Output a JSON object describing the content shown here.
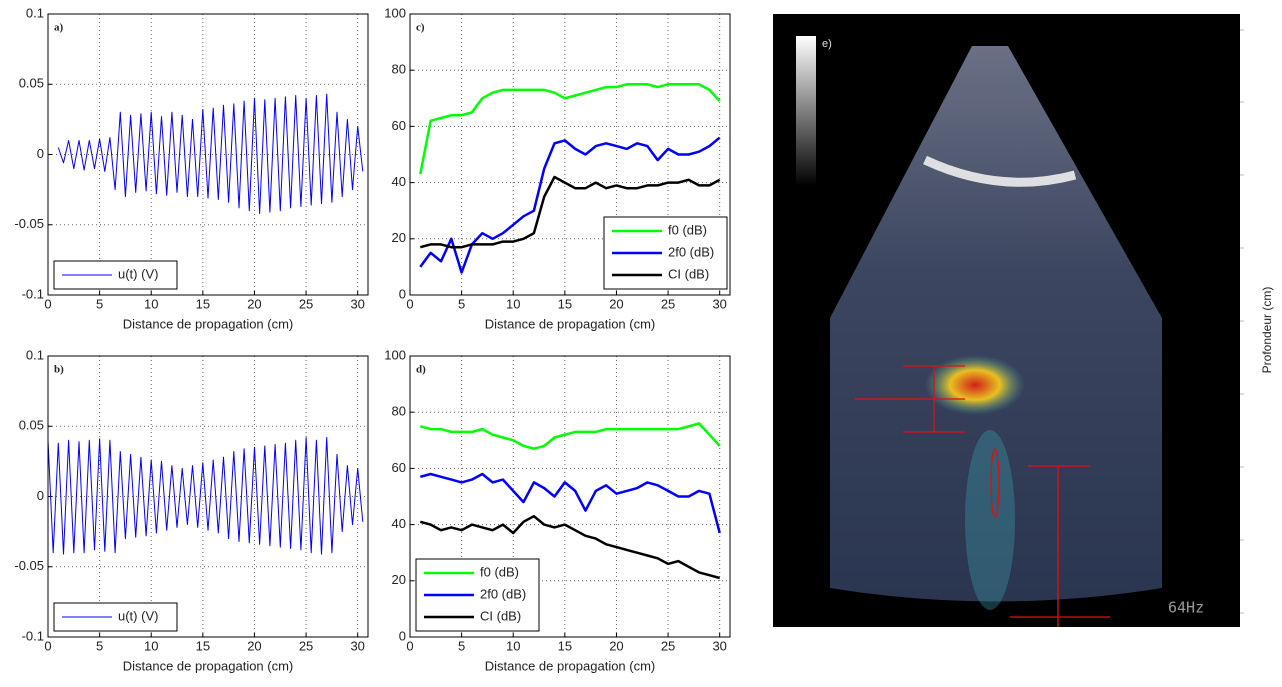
{
  "chart_data": [
    {
      "type": "line",
      "label": "a)",
      "xlabel": "Distance de propagation (cm)",
      "xlim": [
        0,
        31
      ],
      "ylim": [
        -0.1,
        0.1
      ],
      "xticks": [
        0,
        5,
        10,
        15,
        20,
        25,
        30
      ],
      "yticks": [
        -0.1,
        -0.05,
        0,
        0.05,
        0.1
      ],
      "grid": true,
      "legend": "lower left",
      "x": [
        1,
        1.5,
        2,
        2.5,
        3,
        3.5,
        4,
        4.5,
        5,
        5.5,
        6,
        6.5,
        7,
        7.5,
        8,
        8.5,
        9,
        9.5,
        10,
        10.5,
        11,
        11.5,
        12,
        12.5,
        13,
        13.5,
        14,
        14.5,
        15,
        15.5,
        16,
        16.5,
        17,
        17.5,
        18,
        18.5,
        19,
        19.5,
        20,
        20.5,
        21,
        21.5,
        22,
        22.5,
        23,
        23.5,
        24,
        24.5,
        25,
        25.5,
        26,
        26.5,
        27,
        27.5,
        28,
        28.5,
        29,
        29.5,
        30,
        30.5
      ],
      "series": [
        {
          "name": "u(t) (V)",
          "color": "#0000ff",
          "values": [
            0.005,
            -0.006,
            0.01,
            -0.01,
            0.01,
            -0.011,
            0.01,
            -0.01,
            0.011,
            -0.012,
            0.012,
            -0.025,
            0.03,
            -0.03,
            0.028,
            -0.027,
            0.029,
            -0.026,
            0.03,
            -0.028,
            0.027,
            -0.029,
            0.03,
            -0.027,
            0.028,
            -0.03,
            0.025,
            -0.03,
            0.032,
            -0.031,
            0.033,
            -0.032,
            0.035,
            -0.034,
            0.036,
            -0.038,
            0.038,
            -0.04,
            0.04,
            -0.042,
            0.039,
            -0.041,
            0.04,
            -0.04,
            0.041,
            -0.038,
            0.042,
            -0.037,
            0.04,
            -0.036,
            0.042,
            -0.035,
            0.043,
            -0.034,
            0.03,
            -0.03,
            0.025,
            -0.025,
            0.02,
            -0.012
          ]
        }
      ]
    },
    {
      "type": "line",
      "label": "c)",
      "xlabel": "Distance de propagation (cm)",
      "xlim": [
        0,
        31
      ],
      "ylim": [
        0,
        100
      ],
      "xticks": [
        0,
        5,
        10,
        15,
        20,
        25,
        30
      ],
      "yticks": [
        0,
        20,
        40,
        60,
        80,
        100
      ],
      "grid": true,
      "legend": "lower right",
      "x": [
        1,
        2,
        3,
        4,
        5,
        6,
        7,
        8,
        9,
        10,
        11,
        12,
        13,
        14,
        15,
        16,
        17,
        18,
        19,
        20,
        21,
        22,
        23,
        24,
        25,
        26,
        27,
        28,
        29,
        30
      ],
      "series": [
        {
          "name": "f0 (dB)",
          "color": "#00ff00",
          "values": [
            43,
            62,
            63,
            64,
            64,
            65,
            70,
            72,
            73,
            73,
            73,
            73,
            73,
            72,
            70,
            71,
            72,
            73,
            74,
            74,
            75,
            75,
            75,
            74,
            75,
            75,
            75,
            75,
            73,
            69
          ]
        },
        {
          "name": "2f0 (dB)",
          "color": "#0000ff",
          "values": [
            10,
            15,
            12,
            20,
            8,
            18,
            22,
            20,
            22,
            25,
            28,
            30,
            45,
            54,
            55,
            52,
            50,
            53,
            54,
            53,
            52,
            54,
            53,
            48,
            52,
            50,
            50,
            51,
            53,
            56
          ]
        },
        {
          "name": "CI (dB)",
          "color": "#000000",
          "values": [
            17,
            18,
            18,
            17,
            17,
            18,
            18,
            18,
            19,
            19,
            20,
            22,
            35,
            42,
            40,
            38,
            38,
            40,
            38,
            39,
            38,
            38,
            39,
            39,
            40,
            40,
            41,
            39,
            39,
            41
          ]
        }
      ]
    },
    {
      "type": "line",
      "label": "b)",
      "xlabel": "Distance de propagation (cm)",
      "xlim": [
        0,
        31
      ],
      "ylim": [
        -0.1,
        0.1
      ],
      "xticks": [
        0,
        5,
        10,
        15,
        20,
        25,
        30
      ],
      "yticks": [
        -0.1,
        -0.05,
        0,
        0.05,
        0.1
      ],
      "grid": true,
      "legend": "lower left",
      "x": [
        0,
        0.5,
        1,
        1.5,
        2,
        2.5,
        3,
        3.5,
        4,
        4.5,
        5,
        5.5,
        6,
        6.5,
        7,
        7.5,
        8,
        8.5,
        9,
        9.5,
        10,
        10.5,
        11,
        11.5,
        12,
        12.5,
        13,
        13.5,
        14,
        14.5,
        15,
        15.5,
        16,
        16.5,
        17,
        17.5,
        18,
        18.5,
        19,
        19.5,
        20,
        20.5,
        21,
        21.5,
        22,
        22.5,
        23,
        23.5,
        24,
        24.5,
        25,
        25.5,
        26,
        26.5,
        27,
        27.5,
        28,
        28.5,
        29,
        29.5,
        30,
        30.5
      ],
      "series": [
        {
          "name": "u(t) (V)",
          "color": "#0000ff",
          "values": [
            0.04,
            -0.04,
            0.038,
            -0.041,
            0.04,
            -0.04,
            0.039,
            -0.04,
            0.04,
            -0.038,
            0.041,
            -0.039,
            0.04,
            -0.04,
            0.032,
            -0.03,
            0.03,
            -0.029,
            0.028,
            -0.028,
            0.026,
            -0.026,
            0.025,
            -0.024,
            0.022,
            -0.022,
            0.02,
            -0.02,
            0.022,
            -0.022,
            0.024,
            -0.024,
            0.026,
            -0.026,
            0.028,
            -0.03,
            0.032,
            -0.032,
            0.034,
            -0.033,
            0.035,
            -0.034,
            0.036,
            -0.035,
            0.037,
            -0.036,
            0.038,
            -0.037,
            0.04,
            -0.038,
            0.042,
            -0.04,
            0.04,
            -0.041,
            0.042,
            -0.04,
            0.03,
            -0.025,
            0.022,
            -0.02,
            0.02,
            -0.018
          ]
        }
      ]
    },
    {
      "type": "line",
      "label": "d)",
      "xlabel": "Distance de propagation (cm)",
      "xlim": [
        0,
        31
      ],
      "ylim": [
        0,
        100
      ],
      "xticks": [
        0,
        5,
        10,
        15,
        20,
        25,
        30
      ],
      "yticks": [
        0,
        20,
        40,
        60,
        80,
        100
      ],
      "grid": true,
      "legend": "lower left",
      "x": [
        1,
        2,
        3,
        4,
        5,
        6,
        7,
        8,
        9,
        10,
        11,
        12,
        13,
        14,
        15,
        16,
        17,
        18,
        19,
        20,
        21,
        22,
        23,
        24,
        25,
        26,
        27,
        28,
        29,
        30
      ],
      "series": [
        {
          "name": "f0 (dB)",
          "color": "#00ff00",
          "values": [
            75,
            74,
            74,
            73,
            73,
            73,
            74,
            72,
            71,
            70,
            68,
            67,
            68,
            71,
            72,
            73,
            73,
            73,
            74,
            74,
            74,
            74,
            74,
            74,
            74,
            74,
            75,
            76,
            72,
            68
          ]
        },
        {
          "name": "2f0 (dB)",
          "color": "#0000ff",
          "values": [
            57,
            58,
            57,
            56,
            55,
            56,
            58,
            55,
            56,
            52,
            48,
            55,
            53,
            50,
            55,
            52,
            45,
            52,
            54,
            51,
            52,
            53,
            55,
            54,
            52,
            50,
            50,
            52,
            51,
            37
          ]
        },
        {
          "name": "CI (dB)",
          "color": "#000000",
          "values": [
            41,
            40,
            38,
            39,
            38,
            40,
            39,
            38,
            40,
            37,
            41,
            43,
            40,
            39,
            40,
            38,
            36,
            35,
            33,
            32,
            31,
            30,
            29,
            28,
            26,
            27,
            25,
            23,
            22,
            21
          ]
        }
      ]
    }
  ],
  "image": {
    "label": "e)",
    "ylabel": "Profondeur (cm)",
    "frame_rate": "64Hz"
  }
}
